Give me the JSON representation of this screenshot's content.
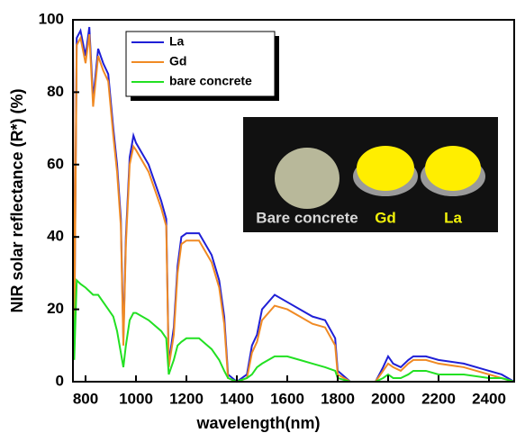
{
  "chart_data": {
    "type": "line",
    "xlabel": "wavelength(nm)",
    "ylabel": "NIR solar reflectance (R*) (%)",
    "x": [
      750,
      755,
      765,
      780,
      800,
      815,
      830,
      850,
      870,
      890,
      910,
      925,
      940,
      950,
      960,
      975,
      990,
      1000,
      1050,
      1100,
      1120,
      1130,
      1150,
      1165,
      1180,
      1200,
      1250,
      1300,
      1330,
      1350,
      1365,
      1400,
      1440,
      1460,
      1480,
      1500,
      1550,
      1600,
      1650,
      1700,
      1750,
      1790,
      1800,
      1850,
      1950,
      1980,
      2000,
      2020,
      2050,
      2080,
      2100,
      2150,
      2200,
      2300,
      2400,
      2450,
      2500
    ],
    "series": [
      {
        "name": "La",
        "color": "#1f1fd6",
        "values": [
          99,
          10,
          95,
          97,
          90,
          98,
          78,
          92,
          88,
          85,
          70,
          60,
          45,
          12,
          40,
          62,
          68,
          66,
          60,
          50,
          45,
          5,
          15,
          32,
          40,
          41,
          41,
          35,
          28,
          18,
          2,
          0,
          2,
          10,
          13,
          20,
          24,
          22,
          20,
          18,
          17,
          12,
          3,
          0,
          0,
          4,
          7,
          5,
          4,
          6,
          7,
          7,
          6,
          5,
          3,
          2,
          0
        ]
      },
      {
        "name": "Gd",
        "color": "#f08a24",
        "values": [
          98,
          8,
          93,
          95,
          88,
          96,
          76,
          90,
          86,
          83,
          68,
          58,
          43,
          10,
          38,
          60,
          65,
          64,
          58,
          48,
          43,
          4,
          13,
          30,
          38,
          39,
          39,
          33,
          26,
          16,
          1,
          0,
          1,
          8,
          11,
          17,
          21,
          20,
          18,
          16,
          15,
          10,
          2,
          0,
          0,
          3,
          5,
          4,
          3,
          5,
          6,
          6,
          5,
          4,
          2,
          1,
          0
        ]
      },
      {
        "name": "bare concrete",
        "color": "#22e022",
        "values": [
          27,
          6,
          28,
          27,
          26,
          25,
          24,
          24,
          22,
          20,
          18,
          14,
          8,
          4,
          10,
          17,
          19,
          19,
          17,
          14,
          12,
          2,
          6,
          10,
          11,
          12,
          12,
          9,
          6,
          3,
          1,
          0,
          1,
          2,
          4,
          5,
          7,
          7,
          6,
          5,
          4,
          3,
          1,
          0,
          0,
          1,
          2,
          1,
          1,
          2,
          3,
          3,
          2,
          2,
          1,
          1,
          0
        ]
      }
    ],
    "xlim": [
      750,
      2500
    ],
    "xticks": [
      800,
      1000,
      1200,
      1400,
      1600,
      1800,
      2000,
      2200,
      2400
    ],
    "ylim": [
      0,
      100
    ],
    "yticks": [
      0,
      20,
      40,
      60,
      80,
      100
    ],
    "legend": "upper left",
    "inset_labels": [
      {
        "text": "Bare concrete",
        "color": "#d8d8d8"
      },
      {
        "text": "Gd",
        "color": "#f2f20a"
      },
      {
        "text": "La",
        "color": "#f2f20a"
      }
    ]
  }
}
